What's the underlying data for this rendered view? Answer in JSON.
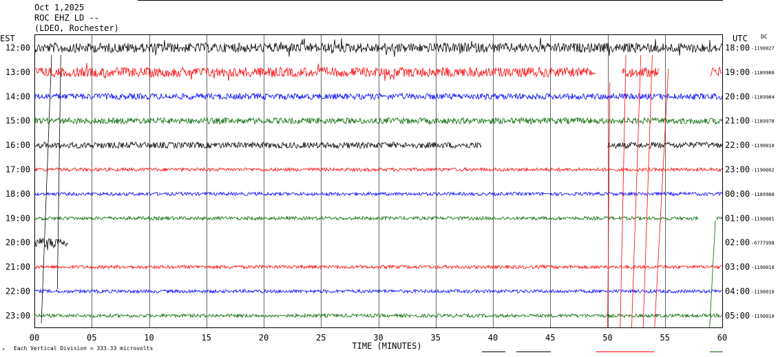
{
  "header": {
    "line1": "Oct 1,2025",
    "line2": "ROC EHZ LD --",
    "line3": "(LDEO, Rochester)"
  },
  "left_axis_title": "EST",
  "right_axis_title": "UTC",
  "dc_title": "DC",
  "footer_note": "Each Vertical Division =  333.33 microvolts",
  "colors": {
    "black": "#000000",
    "red": "#ff0000",
    "blue": "#0000ff",
    "green": "#006400"
  },
  "chart_data": {
    "type": "line",
    "subtype": "helicorder",
    "xlabel": "TIME (MINUTES)",
    "xlim": [
      0,
      60
    ],
    "x_ticks": [
      "00",
      "05",
      "10",
      "15",
      "20",
      "25",
      "30",
      "35",
      "40",
      "45",
      "50",
      "55",
      "60"
    ],
    "traces": [
      {
        "est": "12:00",
        "utc": "18:00",
        "dc": "-1190027",
        "color": "black",
        "amp": "high",
        "segments": [
          [
            0,
            60
          ]
        ]
      },
      {
        "est": "13:00",
        "utc": "19:00",
        "dc": "-1189980",
        "color": "red",
        "amp": "high",
        "segments": [
          [
            0,
            49
          ],
          [
            51.3,
            54.5
          ],
          [
            59,
            60
          ]
        ]
      },
      {
        "est": "14:00",
        "utc": "20:00",
        "dc": "-1189984",
        "color": "blue",
        "amp": "medium",
        "segments": [
          [
            0,
            60
          ]
        ]
      },
      {
        "est": "15:00",
        "utc": "21:00",
        "dc": "-1189978",
        "color": "green",
        "amp": "medium",
        "segments": [
          [
            0,
            60
          ]
        ]
      },
      {
        "est": "16:00",
        "utc": "22:00",
        "dc": "-1190010",
        "color": "black",
        "amp": "medium",
        "segments": [
          [
            0,
            39
          ],
          [
            50,
            60
          ]
        ]
      },
      {
        "est": "17:00",
        "utc": "23:00",
        "dc": "-1190002",
        "color": "red",
        "amp": "low",
        "segments": [
          [
            0,
            60
          ]
        ]
      },
      {
        "est": "18:00",
        "utc": "00:00",
        "dc": "-1189980",
        "color": "blue",
        "amp": "low",
        "segments": [
          [
            0,
            60
          ]
        ]
      },
      {
        "est": "19:00",
        "utc": "01:00",
        "dc": "-1190001",
        "color": "green",
        "amp": "low",
        "segments": [
          [
            0,
            58
          ],
          [
            59.5,
            60
          ]
        ]
      },
      {
        "est": "20:00",
        "utc": "02:00",
        "dc": "-6777998",
        "color": "black",
        "amp": "high",
        "segments": [
          [
            0,
            3
          ]
        ]
      },
      {
        "est": "21:00",
        "utc": "03:00",
        "dc": "-1190010",
        "color": "red",
        "amp": "low",
        "segments": [
          [
            0,
            60
          ]
        ]
      },
      {
        "est": "22:00",
        "utc": "04:00",
        "dc": "-1190010",
        "color": "blue",
        "amp": "low",
        "segments": [
          [
            0,
            60
          ]
        ]
      },
      {
        "est": "23:00",
        "utc": "05:00",
        "dc": "-1190010",
        "color": "green",
        "amp": "low",
        "segments": [
          [
            0,
            60
          ]
        ]
      }
    ]
  }
}
